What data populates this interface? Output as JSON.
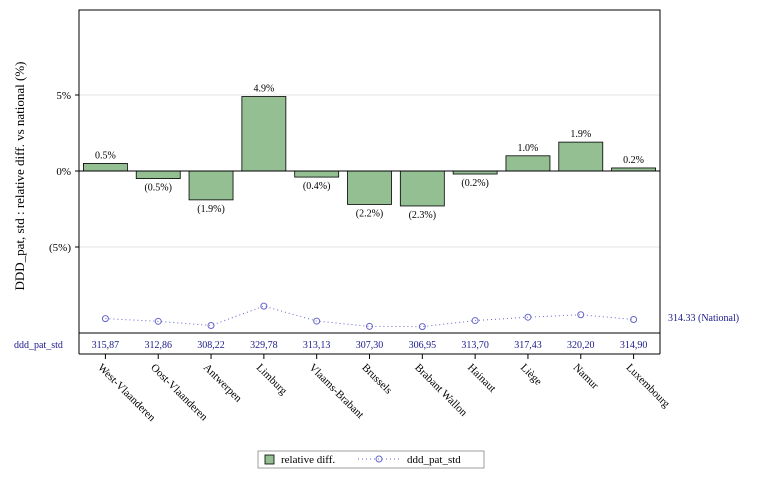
{
  "chart_data": {
    "type": "bar",
    "ylabel": "DDD_pat, std : relative diff. vs national (%)",
    "ylim": [
      -0.115,
      0.105
    ],
    "ytick_values": [
      0.05,
      0,
      -0.05
    ],
    "ytick_labels": [
      "5%",
      "0%",
      "(5%)"
    ],
    "grid": "horizontal",
    "categories": [
      "West-Vlaanderen",
      "Oost-Vlaanderen",
      "Antwerpen",
      "Limburg",
      "Vlaams-Brabant",
      "Brussels",
      "Brabant Wallon",
      "Hainaut",
      "Liège",
      "Namur",
      "Luxembourg"
    ],
    "series": [
      {
        "name": "relative diff.",
        "type": "bar",
        "color": "#93bf93",
        "values": [
          0.005,
          -0.005,
          -0.019,
          0.049,
          -0.004,
          -0.022,
          -0.023,
          -0.002,
          0.01,
          0.019,
          0.002
        ],
        "labels": [
          "0.5%",
          "(0.5%)",
          "(1.9%)",
          "4.9%",
          "(0.4%)",
          "(2.2%)",
          "(2.3%)",
          "(0.2%)",
          "1.0%",
          "1.9%",
          "0.2%"
        ]
      },
      {
        "name": "ddd_pat_std",
        "type": "line",
        "color": "#6666cc",
        "values": [
          315.87,
          312.86,
          308.22,
          329.78,
          313.13,
          307.3,
          306.95,
          313.7,
          317.43,
          320.2,
          314.9
        ],
        "labels": [
          "315,87",
          "312,86",
          "308,22",
          "329,78",
          "313,13",
          "307,30",
          "306,95",
          "313,70",
          "317,43",
          "320,20",
          "314,90"
        ]
      }
    ],
    "row_label": "ddd_pat_std",
    "national_label": "314.33 (National)",
    "national_value": 314.33,
    "legend": {
      "position": "bottom-center",
      "items": [
        "relative diff.",
        "ddd_pat_std"
      ]
    }
  }
}
